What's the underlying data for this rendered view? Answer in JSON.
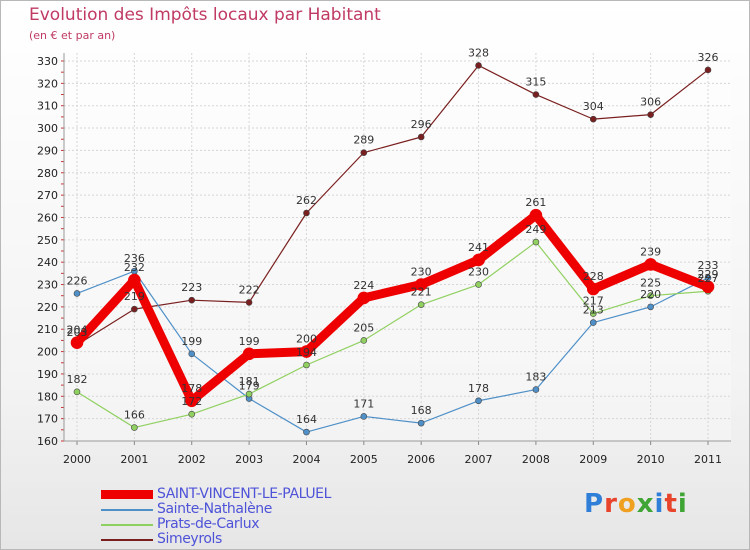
{
  "title": "Evolution des Impôts locaux par Habitant",
  "subtitle": "(en € et par an)",
  "logo": {
    "text": "Proxiti",
    "letter_colors": [
      "#2f7ed8",
      "#e8432b",
      "#f0a020",
      "#3fa535",
      "#2f7ed8",
      "#e8432b",
      "#3fa535"
    ]
  },
  "chart_data": {
    "type": "line",
    "title": "Evolution des Impôts locaux par Habitant",
    "subtitle": "(en € et par an)",
    "xlabel": "",
    "ylabel": "",
    "x": [
      "2000",
      "2001",
      "2002",
      "2003",
      "2004",
      "2005",
      "2006",
      "2007",
      "2008",
      "2009",
      "2010",
      "2011"
    ],
    "ylim": [
      160,
      330
    ],
    "yticks": [
      160,
      170,
      180,
      190,
      200,
      210,
      220,
      230,
      240,
      250,
      260,
      270,
      280,
      290,
      300,
      310,
      320,
      330
    ],
    "grid": true,
    "legend_position": "bottom-left",
    "series": [
      {
        "name": "Simeyrols",
        "color": "#7a1f1f",
        "values": [
          203,
          219,
          223,
          222,
          262,
          289,
          296,
          328,
          315,
          304,
          306,
          326
        ],
        "labels": [
          "203",
          "219",
          "223",
          "222",
          "262",
          "289",
          "296",
          "328",
          "315",
          "304",
          "306",
          "326"
        ]
      },
      {
        "name": "Sainte-Nathalène",
        "color": "#4f90c8",
        "values": [
          226,
          236,
          199,
          179,
          164,
          171,
          168,
          178,
          183,
          213,
          220,
          233
        ],
        "labels": [
          "226",
          "236",
          "199",
          "179",
          "164",
          "171",
          "168",
          "178",
          "183",
          "213",
          "220",
          "233"
        ]
      },
      {
        "name": "Prats-de-Carlux",
        "color": "#90d060",
        "values": [
          182,
          166,
          172,
          181,
          194,
          205,
          221,
          230,
          249,
          217,
          225,
          227
        ],
        "labels": [
          "182",
          "166",
          "172",
          "181",
          "194",
          "205",
          "221",
          "230",
          "249",
          "217",
          "225",
          "227"
        ]
      },
      {
        "name": "SAINT-VINCENT-LE-PALUEL",
        "color": "#ee0000",
        "values": [
          204,
          232,
          178,
          199,
          200,
          224,
          230,
          241,
          261,
          228,
          239,
          229
        ],
        "labels": [
          "204",
          "232",
          "178",
          "199",
          "200",
          "224",
          "230",
          "241",
          "261",
          "228",
          "239",
          "229"
        ]
      }
    ],
    "legend": [
      {
        "name": "SAINT-VINCENT-LE-PALUEL",
        "color": "#ee0000",
        "weight": 9
      },
      {
        "name": "Sainte-Nathalène",
        "color": "#4f90c8",
        "weight": 1.5
      },
      {
        "name": "Prats-de-Carlux",
        "color": "#90d060",
        "weight": 1.5
      },
      {
        "name": "Simeyrols",
        "color": "#7a1f1f",
        "weight": 1.5
      }
    ]
  }
}
